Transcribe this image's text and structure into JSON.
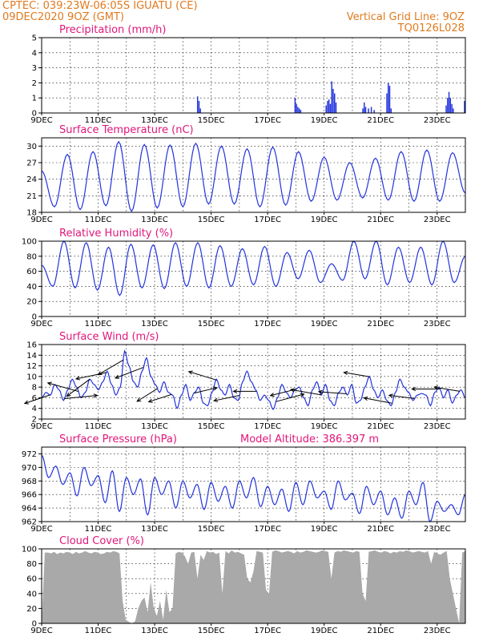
{
  "header": {
    "line1_left": "CPTEC:   039:23W-06:05S   IGUATU (CE)",
    "line2_left": "09DEC2020 9OZ (GMT)",
    "line1_right": "Vertical Grid Line: 9OZ",
    "line2_right": "TQ0126L028"
  },
  "colors": {
    "header": "#e07a1f",
    "panel_title": "#e0177a",
    "series": "#2233dd",
    "cloud": "#a9a9a9",
    "arrow": "#000000"
  },
  "chart_data": [
    {
      "type": "bar",
      "title": "Precipitation (mm/h)",
      "ylim": [
        0,
        5
      ],
      "yticks": [
        "0",
        "1",
        "2",
        "3",
        "4",
        "5"
      ],
      "xticks": [
        "9DEC",
        "11DEC",
        "13DEC",
        "15DEC",
        "17DEC",
        "19DEC",
        "21DEC",
        "23DEC"
      ],
      "x_unit": "days since 9DEC 09Z",
      "bars": [
        {
          "x": 5.5,
          "v": 1.1
        },
        {
          "x": 5.55,
          "v": 0.8
        },
        {
          "x": 5.6,
          "v": 0.3
        },
        {
          "x": 8.95,
          "v": 1.0
        },
        {
          "x": 9.0,
          "v": 0.6
        },
        {
          "x": 9.05,
          "v": 0.4
        },
        {
          "x": 9.1,
          "v": 0.3
        },
        {
          "x": 9.15,
          "v": 0.2
        },
        {
          "x": 10.05,
          "v": 0.5
        },
        {
          "x": 10.1,
          "v": 0.8
        },
        {
          "x": 10.15,
          "v": 0.9
        },
        {
          "x": 10.2,
          "v": 0.6
        },
        {
          "x": 10.25,
          "v": 2.1
        },
        {
          "x": 10.3,
          "v": 1.6
        },
        {
          "x": 10.35,
          "v": 1.3
        },
        {
          "x": 10.4,
          "v": 0.7
        },
        {
          "x": 11.35,
          "v": 0.3
        },
        {
          "x": 11.4,
          "v": 0.7
        },
        {
          "x": 11.45,
          "v": 0.4
        },
        {
          "x": 11.55,
          "v": 0.3
        },
        {
          "x": 11.65,
          "v": 0.4
        },
        {
          "x": 11.75,
          "v": 0.2
        },
        {
          "x": 12.2,
          "v": 1.3
        },
        {
          "x": 12.25,
          "v": 2.0
        },
        {
          "x": 12.3,
          "v": 1.8
        },
        {
          "x": 12.35,
          "v": 0.3
        },
        {
          "x": 14.3,
          "v": 0.5
        },
        {
          "x": 14.35,
          "v": 1.0
        },
        {
          "x": 14.4,
          "v": 1.4
        },
        {
          "x": 14.45,
          "v": 1.0
        },
        {
          "x": 14.5,
          "v": 0.6
        },
        {
          "x": 14.55,
          "v": 0.3
        },
        {
          "x": 14.95,
          "v": 0.8
        }
      ]
    },
    {
      "type": "line",
      "title": "Surface Temperature (nC)",
      "ylim": [
        18,
        31.5
      ],
      "yticks": [
        "18",
        "21",
        "24",
        "27",
        "30"
      ],
      "xticks": [
        "9DEC",
        "11DEC",
        "13DEC",
        "15DEC",
        "17DEC",
        "19DEC",
        "21DEC",
        "23DEC"
      ],
      "x_unit": "days since 9DEC 09Z",
      "maxima": [
        25.5,
        28.5,
        29.0,
        30.8,
        30.3,
        30.2,
        30.5,
        30.0,
        29.5,
        29.8,
        29.0,
        28.0,
        27.0,
        27.8,
        29.0,
        29.3,
        28.8
      ],
      "minima": [
        19.0,
        18.5,
        19.2,
        18.2,
        18.8,
        19.0,
        19.5,
        19.5,
        19.0,
        19.3,
        20.0,
        20.2,
        20.6,
        20.2,
        20.0,
        20.0,
        21.5
      ]
    },
    {
      "type": "line",
      "title": "Relative Humidity (%)",
      "ylim": [
        0,
        100
      ],
      "yticks": [
        "0",
        "20",
        "40",
        "60",
        "80",
        "100"
      ],
      "xticks": [
        "9DEC",
        "11DEC",
        "13DEC",
        "15DEC",
        "17DEC",
        "19DEC",
        "21DEC",
        "23DEC"
      ],
      "x_unit": "days since 9DEC 09Z",
      "maxima": [
        68,
        100,
        98,
        92,
        96,
        95,
        98,
        98,
        94,
        90,
        93,
        85,
        88,
        70,
        100,
        100,
        92,
        92,
        100,
        80
      ],
      "minima": [
        40,
        38,
        35,
        28,
        38,
        37,
        40,
        38,
        40,
        42,
        40,
        50,
        45,
        48,
        50,
        42,
        45,
        42,
        45
      ]
    },
    {
      "type": "line",
      "title": "Surface Wind (m/s)",
      "ylim": [
        2,
        16
      ],
      "yticks": [
        "2",
        "4",
        "6",
        "8",
        "10",
        "12",
        "14",
        "16"
      ],
      "xticks": [
        "9DEC",
        "11DEC",
        "13DEC",
        "15DEC",
        "17DEC",
        "19DEC",
        "21DEC",
        "23DEC"
      ],
      "x_unit": "days since 9DEC 09Z",
      "speed": [
        6.0,
        7.0,
        6.5,
        8.5,
        7.5,
        5.5,
        7.5,
        9.5,
        8.0,
        6.0,
        7.0,
        9.5,
        8.5,
        7.5,
        9.0,
        11.0,
        8.5,
        6.5,
        8.0,
        14.8,
        12.0,
        9.0,
        8.0,
        11.0,
        13.5,
        10.0,
        8.5,
        7.0,
        9.0,
        7.0,
        6.5,
        4.0,
        6.5,
        8.5,
        5.5,
        7.0,
        8.0,
        5.0,
        4.5,
        7.0,
        9.5,
        7.5,
        6.5,
        8.5,
        6.0,
        5.5,
        9.0,
        11.0,
        9.0,
        7.5,
        5.5,
        6.5,
        5.5,
        3.8,
        6.0,
        8.5,
        7.0,
        6.0,
        7.5,
        8.0,
        6.0,
        4.5,
        7.5,
        9.0,
        6.5,
        8.5,
        5.5,
        4.5,
        7.0,
        8.0,
        6.5,
        8.5,
        5.0,
        5.5,
        8.0,
        10.0,
        7.5,
        6.0,
        7.5,
        5.5,
        4.5,
        7.0,
        9.5,
        8.0,
        7.0,
        5.5,
        6.5,
        6.8,
        6.5,
        4.5,
        7.0,
        8.0,
        6.0,
        7.5,
        5.0,
        6.5,
        7.5,
        6.0
      ],
      "arrows": [
        {
          "x": 0.3,
          "dx": -1.0,
          "dy": -0.4
        },
        {
          "x": 0.8,
          "dx": 1.3,
          "dy": 0.15
        },
        {
          "x": 1.3,
          "dx": -1.2,
          "dy": 0.4
        },
        {
          "x": 1.7,
          "dx": -0.9,
          "dy": -0.8
        },
        {
          "x": 2.3,
          "dx": -1.2,
          "dy": -0.3
        },
        {
          "x": 2.9,
          "dx": -1.0,
          "dy": -0.7
        },
        {
          "x": 3.6,
          "dx": -1.1,
          "dy": -0.5
        },
        {
          "x": 4.1,
          "dx": -0.8,
          "dy": -0.6
        },
        {
          "x": 4.6,
          "dx": -0.9,
          "dy": -0.35
        },
        {
          "x": 5.4,
          "dx": 0.9,
          "dy": 0.25
        },
        {
          "x": 6.2,
          "dx": -1.1,
          "dy": 0.4
        },
        {
          "x": 7.0,
          "dx": -1.0,
          "dy": -0.25
        },
        {
          "x": 7.6,
          "dx": -0.9,
          "dy": 0.0
        },
        {
          "x": 8.3,
          "dx": 1.1,
          "dy": 0.35
        },
        {
          "x": 9.0,
          "dx": -1.0,
          "dy": -0.3
        },
        {
          "x": 9.9,
          "dx": -1.2,
          "dy": 0.25
        },
        {
          "x": 10.8,
          "dx": -1.1,
          "dy": 0.1
        },
        {
          "x": 11.6,
          "dx": -1.0,
          "dy": 0.2
        },
        {
          "x": 12.4,
          "dx": -1.1,
          "dy": 0.25
        },
        {
          "x": 13.2,
          "dx": -1.0,
          "dy": 0.15
        },
        {
          "x": 14.1,
          "dx": -1.1,
          "dy": 0.0
        },
        {
          "x": 14.8,
          "dx": -1.0,
          "dy": 0.2
        }
      ]
    },
    {
      "type": "line",
      "title": "Surface Pressure (hPa)",
      "subtitle": "Model Altitude: 386.397 m",
      "ylim": [
        962,
        973
      ],
      "yticks": [
        "962",
        "964",
        "966",
        "968",
        "970",
        "972"
      ],
      "xticks": [
        "9DEC",
        "11DEC",
        "13DEC",
        "15DEC",
        "17DEC",
        "19DEC",
        "21DEC",
        "23DEC"
      ],
      "x_unit": "days since 9DEC 09Z",
      "maxima": [
        971.8,
        970.2,
        969.2,
        970.0,
        968.8,
        969.5,
        968.5,
        968.3,
        968.5,
        968.0,
        968.0,
        967.5,
        967.8,
        967.2,
        968.0,
        968.5,
        967.2,
        966.8,
        967.8,
        968.0,
        966.5,
        968.0,
        966.2,
        967.2,
        966.5,
        965.5,
        966.5,
        967.8,
        965.0,
        964.5,
        966.0
      ],
      "minima": [
        968.5,
        967.5,
        965.8,
        967.3,
        964.8,
        963.5,
        966.0,
        963.0,
        966.0,
        964.0,
        965.5,
        963.8,
        965.0,
        964.0,
        965.5,
        964.2,
        964.5,
        963.5,
        964.5,
        965.5,
        963.8,
        965.2,
        963.2,
        964.5,
        963.0,
        962.5,
        964.5,
        962.0,
        963.5,
        963.0
      ]
    },
    {
      "type": "area",
      "title": "Cloud Cover (%)",
      "ylim": [
        0,
        100
      ],
      "yticks": [
        "0",
        "20",
        "40",
        "60",
        "80",
        "100"
      ],
      "xticks": [
        "9DEC",
        "11DEC",
        "13DEC",
        "15DEC",
        "17DEC",
        "19DEC",
        "21DEC",
        "23DEC"
      ],
      "x_unit": "days since 9DEC 09Z",
      "values": [
        0,
        95,
        95,
        94,
        96,
        93,
        95,
        94,
        96,
        95,
        93,
        96,
        94,
        95,
        97,
        95,
        94,
        96,
        95,
        93,
        94,
        96,
        95,
        97,
        96,
        94,
        30,
        5,
        2,
        0,
        3,
        20,
        30,
        35,
        15,
        55,
        20,
        10,
        30,
        5,
        45,
        15,
        20,
        94,
        96,
        95,
        90,
        80,
        95,
        96,
        60,
        92,
        85,
        97,
        95,
        96,
        93,
        95,
        40,
        97,
        94,
        98,
        95,
        96,
        94,
        92,
        60,
        55,
        70,
        97,
        96,
        95,
        45,
        40,
        96,
        98,
        97,
        95,
        96,
        97,
        96,
        94,
        97,
        95,
        96,
        98,
        97,
        96,
        95,
        96,
        98,
        97,
        96,
        60,
        95,
        97,
        96,
        98,
        97,
        96,
        95,
        97,
        96,
        40,
        30,
        96,
        97,
        98,
        96,
        95,
        97,
        96,
        94,
        96,
        95,
        97,
        96,
        98,
        97,
        95,
        96,
        97,
        96,
        95,
        97,
        80,
        96,
        94,
        92,
        95,
        97,
        60,
        40,
        20,
        0,
        95,
        97
      ]
    }
  ]
}
